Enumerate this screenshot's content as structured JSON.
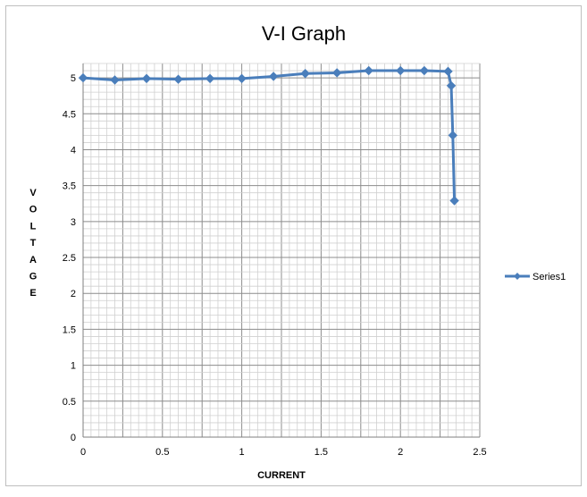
{
  "chart_data": {
    "type": "line",
    "title": "V-I Graph",
    "xlabel": "CURRENT",
    "ylabel": "VOLTAGE",
    "xlim": [
      0,
      2.5
    ],
    "ylim": [
      0,
      5.2
    ],
    "x_ticks": [
      0,
      0.5,
      1,
      1.5,
      2,
      2.5
    ],
    "y_ticks": [
      0,
      0.5,
      1,
      1.5,
      2,
      2.5,
      3,
      3.5,
      4,
      4.5,
      5
    ],
    "x_tick_labels": [
      "0",
      "0.5",
      "1",
      "1.5",
      "2",
      "2.5"
    ],
    "y_tick_labels": [
      "0",
      "0.5",
      "1",
      "1.5",
      "2",
      "2.5",
      "3",
      "3.5",
      "4",
      "4.5",
      "5"
    ],
    "grid": true,
    "legend_position": "right",
    "series": [
      {
        "name": "Series1",
        "color": "#4a7ebb",
        "marker": "diamond",
        "x": [
          0,
          0.2,
          0.4,
          0.6,
          0.8,
          1.0,
          1.2,
          1.4,
          1.6,
          1.8,
          2.0,
          2.15,
          2.3,
          2.32,
          2.33,
          2.34
        ],
        "y": [
          5.0,
          4.97,
          4.99,
          4.98,
          4.99,
          4.99,
          5.02,
          5.06,
          5.07,
          5.1,
          5.1,
          5.1,
          5.09,
          4.89,
          4.2,
          3.29
        ]
      }
    ]
  }
}
